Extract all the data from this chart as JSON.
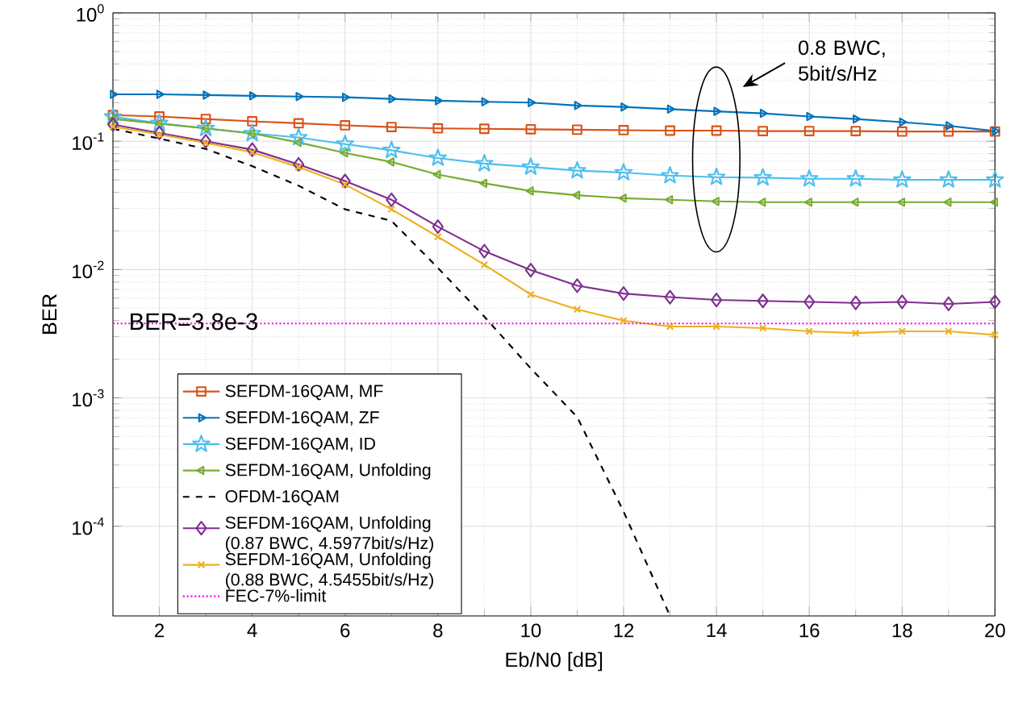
{
  "chart_data": {
    "type": "line",
    "xlabel": "Eb/N0 [dB]",
    "ylabel": "BER",
    "log": "y",
    "grid": true,
    "legend": "bottom left",
    "x": [
      1,
      2,
      3,
      4,
      5,
      6,
      7,
      8,
      9,
      10,
      11,
      12,
      13,
      14,
      15,
      16,
      17,
      18,
      19,
      20
    ],
    "xlim": [
      1,
      20
    ],
    "xticks": [
      2,
      4,
      6,
      8,
      10,
      12,
      14,
      16,
      18,
      20
    ],
    "ylim": [
      2e-05,
      1
    ],
    "yticks": [
      {
        "value": 0.0001,
        "label": "10$^{-4}$"
      },
      {
        "value": 0.001,
        "label": "10$^{-3}$"
      },
      {
        "value": 0.01,
        "label": "10$^{-2}$"
      },
      {
        "value": 0.1,
        "label": "10$^{-1}$"
      },
      {
        "value": 1,
        "label": "10$^{0}$"
      }
    ],
    "series": [
      {
        "name": "SEFDM-16QAM, MF",
        "color": "#d95319",
        "marker": "square",
        "line_style": "solid",
        "values": [
          0.16,
          0.156,
          0.149,
          0.143,
          0.138,
          0.133,
          0.129,
          0.126,
          0.125,
          0.124,
          0.123,
          0.122,
          0.121,
          0.121,
          0.12,
          0.12,
          0.12,
          0.119,
          0.119,
          0.119
        ]
      },
      {
        "name": "SEFDM-16QAM, ZF",
        "color": "#0072bd",
        "marker": "triangle-right",
        "line_style": "solid",
        "values": [
          0.232,
          0.232,
          0.229,
          0.226,
          0.223,
          0.22,
          0.214,
          0.207,
          0.203,
          0.2,
          0.19,
          0.185,
          0.178,
          0.171,
          0.165,
          0.156,
          0.149,
          0.141,
          0.132,
          0.12
        ]
      },
      {
        "name": "SEFDM-16QAM, ID",
        "color": "#4dbeee",
        "marker": "star",
        "line_style": "solid",
        "values": [
          0.155,
          0.138,
          0.126,
          0.115,
          0.107,
          0.095,
          0.085,
          0.074,
          0.067,
          0.063,
          0.059,
          0.057,
          0.054,
          0.0525,
          0.052,
          0.051,
          0.051,
          0.05,
          0.05,
          0.05
        ]
      },
      {
        "name": "SEFDM-16QAM, Unfolding",
        "color": "#77ac30",
        "marker": "triangle-left",
        "line_style": "solid",
        "values": [
          0.149,
          0.137,
          0.126,
          0.115,
          0.098,
          0.081,
          0.069,
          0.055,
          0.047,
          0.041,
          0.038,
          0.036,
          0.035,
          0.034,
          0.0335,
          0.0335,
          0.0335,
          0.0335,
          0.0335,
          0.0335
        ]
      },
      {
        "name": "OFDM-16QAM",
        "color": "#000000",
        "marker": "none",
        "line_style": "dashed",
        "values": [
          0.125,
          0.105,
          0.087,
          0.064,
          0.045,
          0.0295,
          0.024,
          0.0103,
          0.0043,
          0.0017,
          0.00071,
          0.00013,
          2e-05,
          null,
          null,
          null,
          null,
          null,
          null,
          null
        ]
      },
      {
        "name": "SEFDM-16QAM, Unfolding (0.87 BWC, 4.5977bit/s/Hz)",
        "color": "#7e2f8e",
        "marker": "diamond",
        "line_style": "solid",
        "values": [
          0.135,
          0.116,
          0.1,
          0.086,
          0.066,
          0.049,
          0.035,
          0.0216,
          0.0139,
          0.0099,
          0.0075,
          0.0065,
          0.0061,
          0.0058,
          0.0057,
          0.0056,
          0.0055,
          0.0056,
          0.0054,
          0.0056
        ]
      },
      {
        "name": "SEFDM-16QAM, Unfolding (0.88 BWC, 4.5455bit/s/Hz)",
        "color": "#edb120",
        "marker": "cross",
        "line_style": "solid",
        "values": [
          0.13,
          0.113,
          0.097,
          0.082,
          0.063,
          0.046,
          0.0295,
          0.018,
          0.0109,
          0.0064,
          0.0049,
          0.004,
          0.0036,
          0.0036,
          0.0035,
          0.0033,
          0.0032,
          0.0033,
          0.0033,
          0.0031
        ]
      }
    ],
    "ref_lines": [
      {
        "axis": "y",
        "value": 0.0038,
        "label": "FEC-7%-limit",
        "color": "#ff00ff",
        "line_style": "dotted"
      }
    ],
    "annotations": [
      "BER=3.8e-3",
      "0.8 BWC, 5bit/s/Hz"
    ]
  }
}
